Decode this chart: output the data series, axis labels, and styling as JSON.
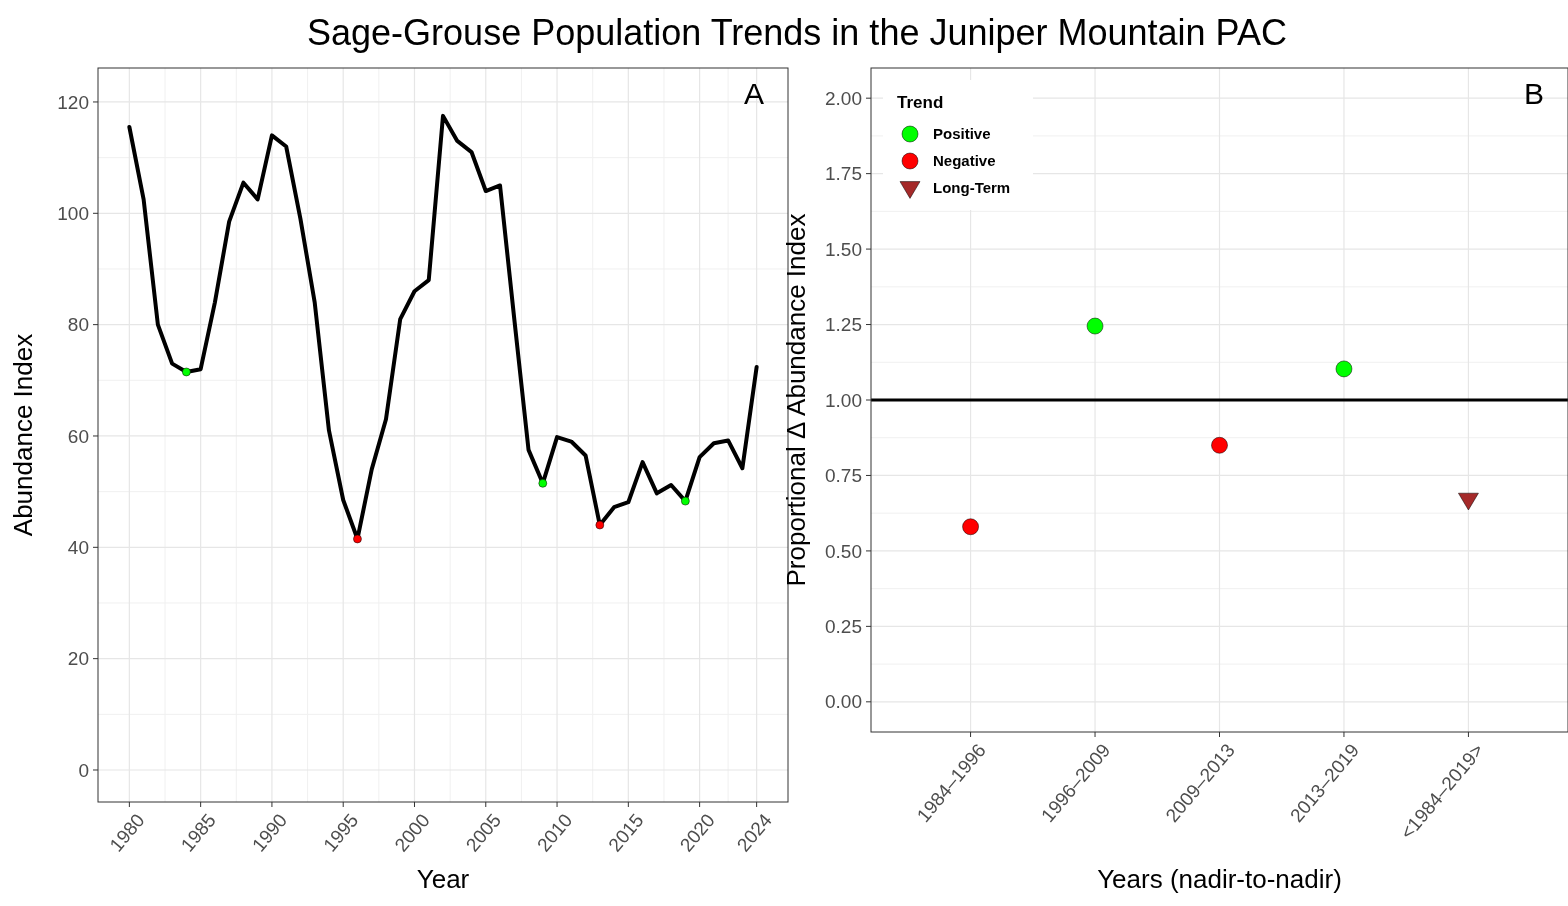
{
  "chart_data": [
    {
      "type": "line",
      "title": "Sage-Grouse Population Trends in the Juniper Mountain PAC",
      "xlabel": "Year",
      "ylabel": "Abundance Index",
      "annotations": [
        "A"
      ],
      "xlim": [
        1977.8,
        2026.2
      ],
      "ylim": [
        -5.75,
        126.1
      ],
      "xticks": [
        1980,
        1985,
        1990,
        1995,
        2000,
        2005,
        2010,
        2015,
        2020,
        2024
      ],
      "yticks": [
        0,
        20,
        40,
        60,
        80,
        100,
        120
      ],
      "grid": true,
      "legend": false,
      "series": [
        {
          "type": "line",
          "color": "#000000",
          "line_style": "solid",
          "x": [
            1980,
            1981,
            1982,
            1983,
            1984,
            1985,
            1986,
            1987,
            1988,
            1989,
            1990,
            1991,
            1992,
            1993,
            1994,
            1995,
            1996,
            1997,
            1998,
            1999,
            2000,
            2001,
            2002,
            2003,
            2004,
            2005,
            2006,
            2007,
            2008,
            2009,
            2010,
            2011,
            2012,
            2013,
            2014,
            2015,
            2016,
            2017,
            2018,
            2019,
            2020,
            2021,
            2022,
            2023,
            2024
          ],
          "values": [
            115.5,
            102.5,
            80,
            73,
            71.5,
            72,
            84,
            98.5,
            105.5,
            102.5,
            114,
            112,
            99,
            84,
            61,
            48.5,
            41.5,
            54,
            63,
            81,
            86,
            88,
            117.5,
            113,
            111,
            104,
            105,
            81,
            57.5,
            51.5,
            59.8,
            59,
            56.5,
            44,
            47.2,
            48.1,
            55.3,
            49.7,
            51.2,
            48.3,
            56.2,
            58.7,
            59.2,
            54.2,
            72.4
          ]
        },
        {
          "type": "scatter",
          "color": "#00ff00",
          "marker": "circle",
          "x": [
            1984,
            2009,
            2019
          ],
          "values": [
            71.5,
            51.5,
            48.3
          ]
        },
        {
          "type": "scatter",
          "color": "#ff0000",
          "marker": "circle",
          "x": [
            1996,
            2013
          ],
          "values": [
            41.5,
            44
          ]
        }
      ]
    },
    {
      "type": "scatter",
      "xlabel": "Years (nadir-to-nadir)",
      "ylabel": "Proportional Δ Abundance Index",
      "annotations": [
        "B"
      ],
      "legend_title": "Trend",
      "legend": "top left",
      "categories": [
        "1984–1996",
        "1996–2009",
        "2009–2013",
        "2013–2019",
        "<1984–2019>"
      ],
      "ylim": [
        -0.1,
        2.1
      ],
      "yticks": [
        {
          "value": 0,
          "label": "0.00"
        },
        {
          "value": 0.25,
          "label": "0.25"
        },
        {
          "value": 0.5,
          "label": "0.50"
        },
        {
          "value": 0.75,
          "label": "0.75"
        },
        {
          "value": 1,
          "label": "1.00"
        },
        {
          "value": 1.25,
          "label": "1.25"
        },
        {
          "value": 1.5,
          "label": "1.50"
        },
        {
          "value": 1.75,
          "label": "1.75"
        },
        {
          "value": 2,
          "label": "2.00"
        }
      ],
      "grid": true,
      "ref_lines": [
        {
          "axis": "y",
          "value": 1,
          "color": "#000000"
        }
      ],
      "series": [
        {
          "name": "Positive",
          "color": "#00ff00",
          "marker": "circle",
          "values": [
            null,
            1.245,
            null,
            1.103,
            null
          ]
        },
        {
          "name": "Negative",
          "color": "#ff0000",
          "marker": "circle",
          "values": [
            0.58,
            null,
            0.85,
            null,
            null
          ]
        },
        {
          "name": "Long-Term",
          "color": "#a52a2a",
          "marker": "triangle",
          "values": [
            null,
            null,
            null,
            null,
            0.67
          ]
        }
      ]
    }
  ]
}
